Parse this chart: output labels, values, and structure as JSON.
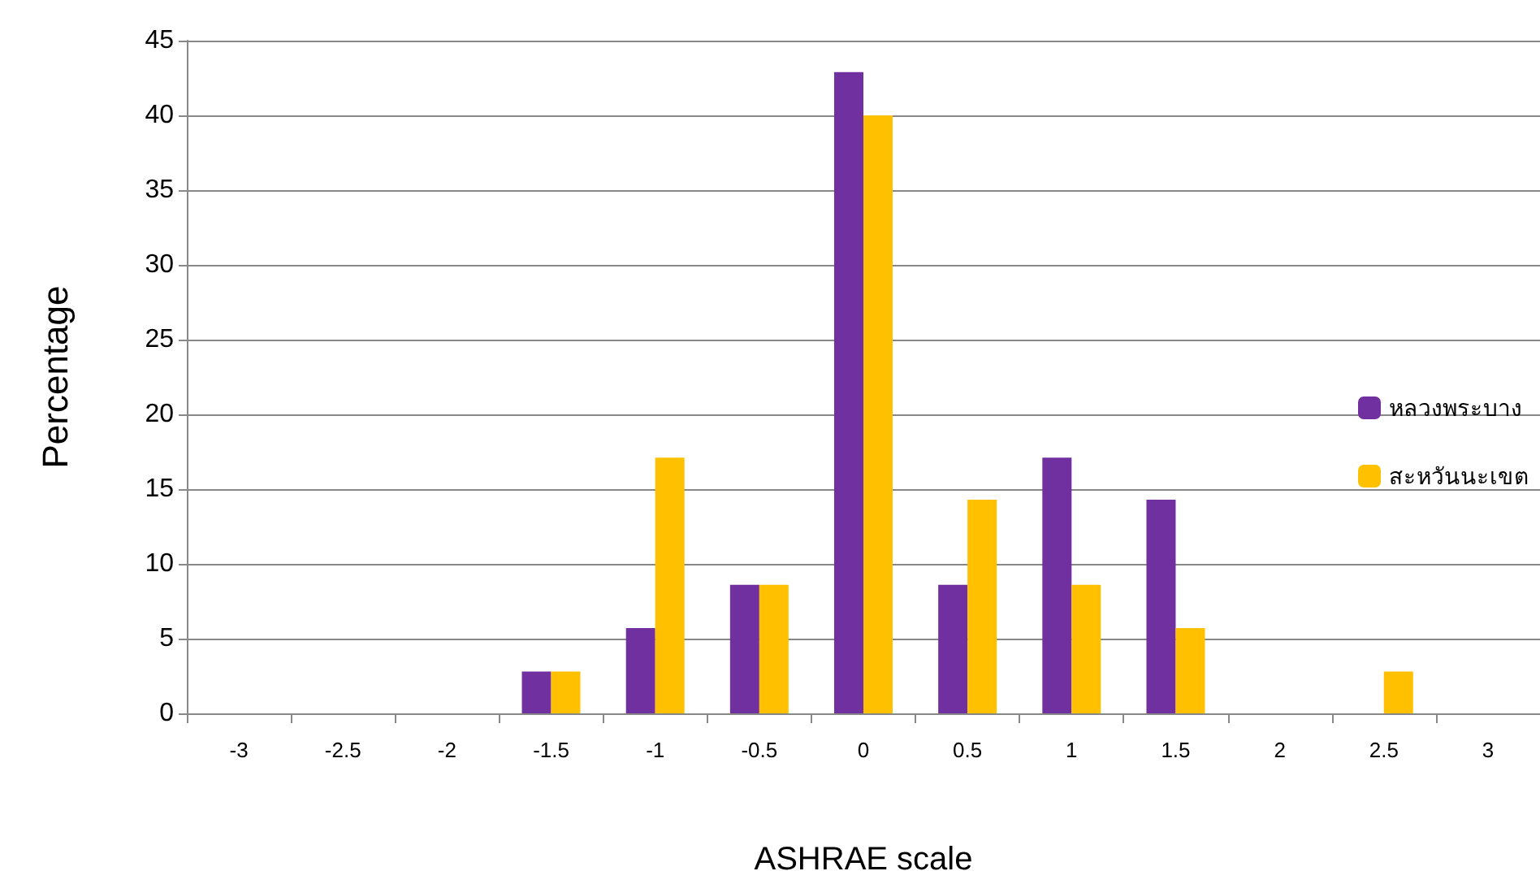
{
  "chart_data": {
    "type": "bar",
    "xlabel": "ASHRAE scale",
    "ylabel": "Percentage",
    "categories": [
      "-3",
      "-2.5",
      "-2",
      "-1.5",
      "-1",
      "-0.5",
      "0",
      "0.5",
      "1",
      "1.5",
      "2",
      "2.5",
      "3"
    ],
    "series": [
      {
        "name": "หลวงพระบาง",
        "color": "#7030a0",
        "values": [
          0,
          0,
          0,
          2.8,
          5.7,
          8.6,
          42.9,
          8.6,
          17.1,
          14.3,
          0,
          0,
          0
        ]
      },
      {
        "name": "สะหวันนะเขต",
        "color": "#ffc000",
        "values": [
          0,
          0,
          0,
          2.8,
          17.1,
          8.6,
          40,
          14.3,
          8.6,
          5.7,
          0,
          2.8,
          0
        ]
      }
    ],
    "ylim": [
      0,
      45
    ],
    "yticks": [
      0,
      5,
      10,
      15,
      20,
      25,
      30,
      35,
      40,
      45
    ],
    "grid": "y",
    "legend": "right"
  }
}
